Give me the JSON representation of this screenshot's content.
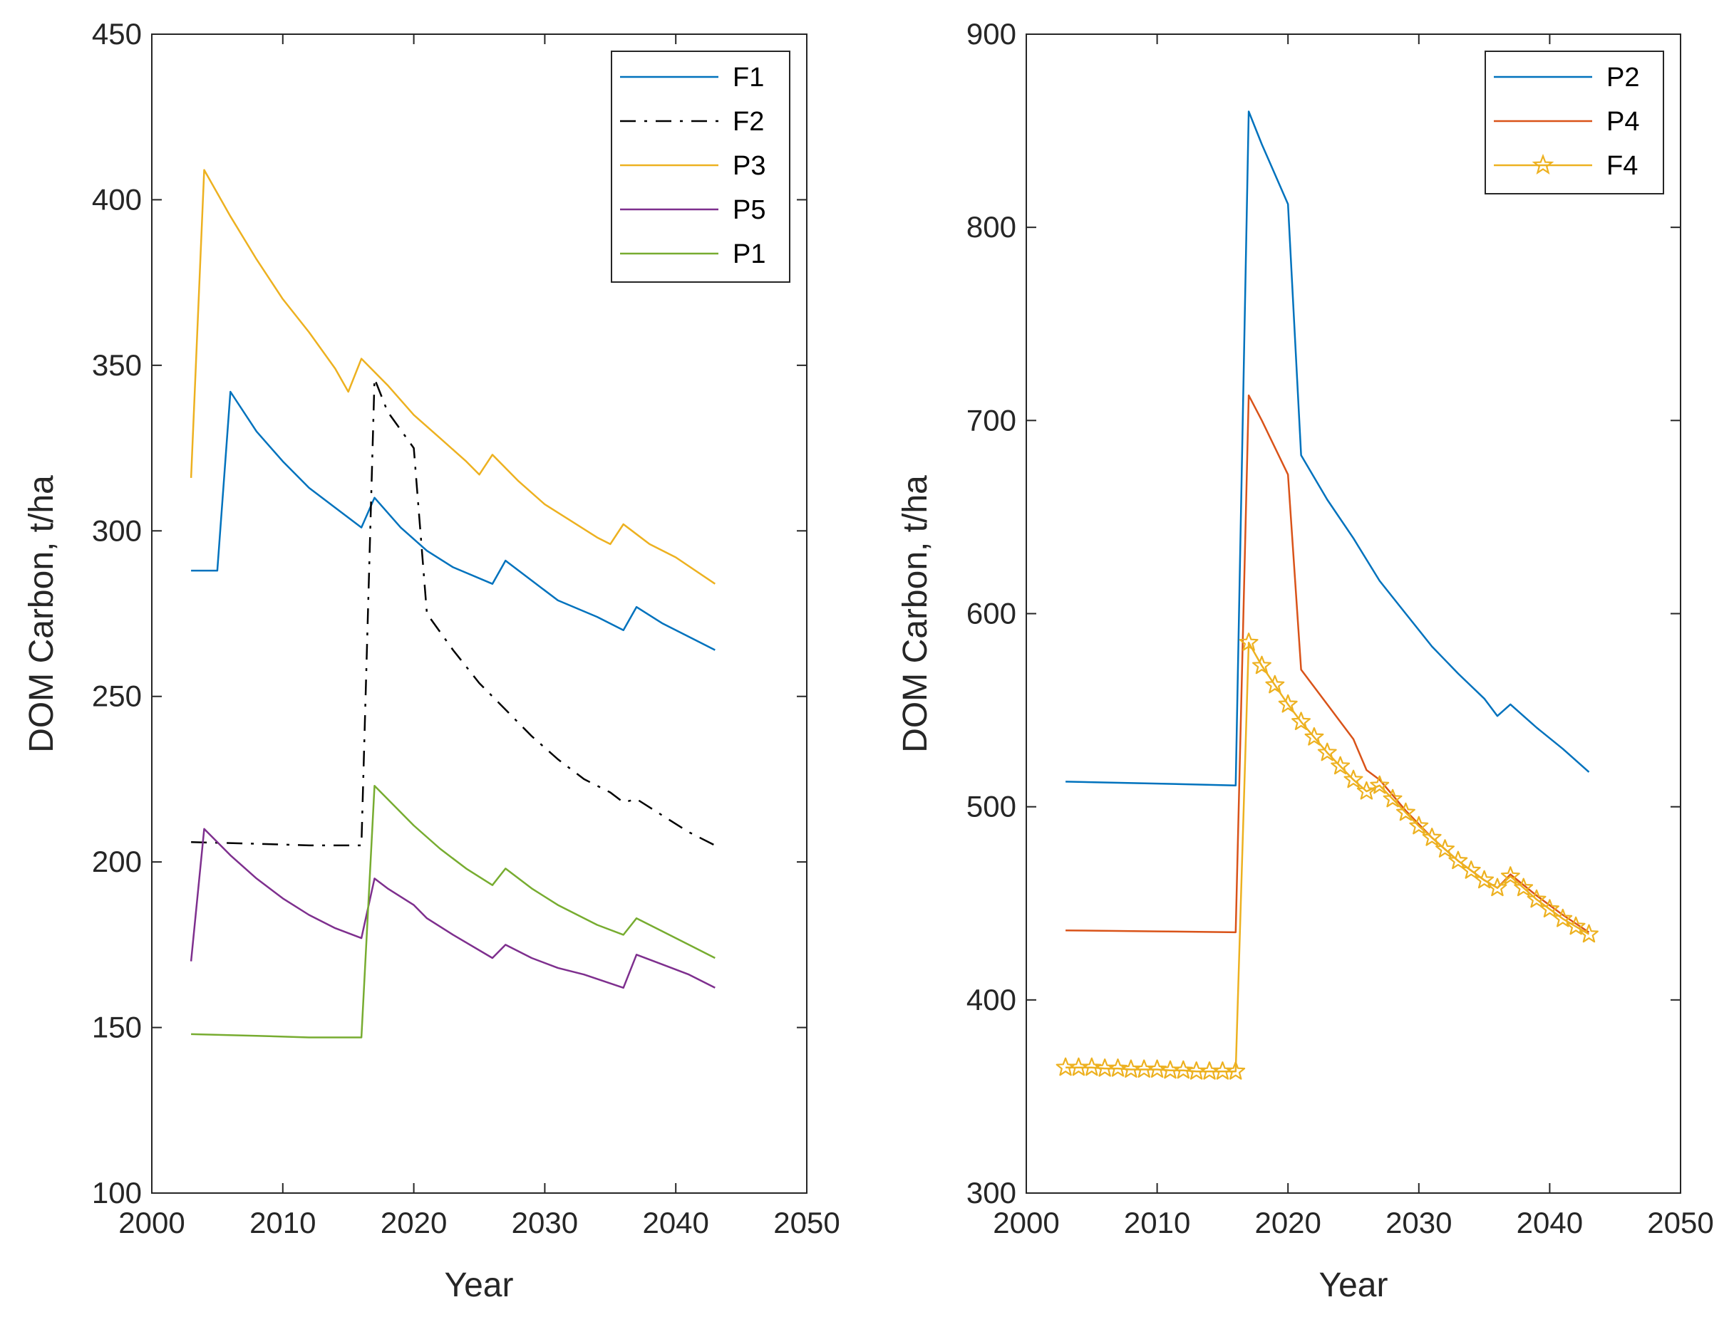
{
  "chart_data": [
    {
      "type": "line",
      "title": "",
      "xlabel": "Year",
      "ylabel": "DOM Carbon, t/ha",
      "xlim": [
        2000,
        2050
      ],
      "ylim": [
        100,
        450
      ],
      "xticks": [
        2000,
        2010,
        2020,
        2030,
        2040,
        2050
      ],
      "yticks": [
        100,
        150,
        200,
        250,
        300,
        350,
        400,
        450
      ],
      "legend_position": "top-right",
      "series": [
        {
          "name": "F1",
          "color": "#0072BD",
          "style": "solid",
          "marker": "none",
          "points": [
            [
              2003,
              288
            ],
            [
              2005,
              288
            ],
            [
              2006,
              342
            ],
            [
              2008,
              330
            ],
            [
              2010,
              321
            ],
            [
              2012,
              313
            ],
            [
              2014,
              307
            ],
            [
              2016,
              301
            ],
            [
              2017,
              310
            ],
            [
              2019,
              301
            ],
            [
              2021,
              294
            ],
            [
              2023,
              289
            ],
            [
              2026,
              284
            ],
            [
              2027,
              291
            ],
            [
              2029,
              285
            ],
            [
              2031,
              279
            ],
            [
              2034,
              274
            ],
            [
              2036,
              270
            ],
            [
              2037,
              277
            ],
            [
              2039,
              272
            ],
            [
              2041,
              268
            ],
            [
              2043,
              264
            ]
          ]
        },
        {
          "name": "F2",
          "color": "#000000",
          "style": "dashdot",
          "marker": "none",
          "points": [
            [
              2003,
              206
            ],
            [
              2008,
              205.5
            ],
            [
              2012,
              205
            ],
            [
              2016,
              205
            ],
            [
              2017,
              346
            ],
            [
              2018,
              336
            ],
            [
              2020,
              325
            ],
            [
              2021,
              275
            ],
            [
              2023,
              264
            ],
            [
              2025,
              254
            ],
            [
              2027,
              246
            ],
            [
              2029,
              238
            ],
            [
              2031,
              231
            ],
            [
              2033,
              225
            ],
            [
              2035,
              221
            ],
            [
              2036,
              218
            ],
            [
              2037,
              219
            ],
            [
              2039,
              214
            ],
            [
              2041,
              209
            ],
            [
              2043,
              205
            ]
          ]
        },
        {
          "name": "P3",
          "color": "#EDB120",
          "style": "solid",
          "marker": "none",
          "points": [
            [
              2003,
              316
            ],
            [
              2004,
              409
            ],
            [
              2006,
              395
            ],
            [
              2008,
              382
            ],
            [
              2010,
              370
            ],
            [
              2012,
              360
            ],
            [
              2014,
              349
            ],
            [
              2015,
              342
            ],
            [
              2016,
              352
            ],
            [
              2018,
              344
            ],
            [
              2020,
              335
            ],
            [
              2022,
              328
            ],
            [
              2024,
              321
            ],
            [
              2025,
              317
            ],
            [
              2026,
              323
            ],
            [
              2028,
              315
            ],
            [
              2030,
              308
            ],
            [
              2032,
              303
            ],
            [
              2034,
              298
            ],
            [
              2035,
              296
            ],
            [
              2036,
              302
            ],
            [
              2038,
              296
            ],
            [
              2040,
              292
            ],
            [
              2043,
              284
            ]
          ]
        },
        {
          "name": "P5",
          "color": "#7E2F8E",
          "style": "solid",
          "marker": "none",
          "points": [
            [
              2003,
              170
            ],
            [
              2004,
              210
            ],
            [
              2006,
              202
            ],
            [
              2008,
              195
            ],
            [
              2010,
              189
            ],
            [
              2012,
              184
            ],
            [
              2014,
              180
            ],
            [
              2016,
              177
            ],
            [
              2017,
              195
            ],
            [
              2018,
              192
            ],
            [
              2020,
              187
            ],
            [
              2021,
              183
            ],
            [
              2023,
              178
            ],
            [
              2026,
              171
            ],
            [
              2027,
              175
            ],
            [
              2029,
              171
            ],
            [
              2031,
              168
            ],
            [
              2033,
              166
            ],
            [
              2036,
              162
            ],
            [
              2037,
              172
            ],
            [
              2039,
              169
            ],
            [
              2041,
              166
            ],
            [
              2043,
              162
            ]
          ]
        },
        {
          "name": "P1",
          "color": "#77AC30",
          "style": "solid",
          "marker": "none",
          "points": [
            [
              2003,
              148
            ],
            [
              2008,
              147.5
            ],
            [
              2012,
              147
            ],
            [
              2016,
              147
            ],
            [
              2017,
              223
            ],
            [
              2018,
              219
            ],
            [
              2020,
              211
            ],
            [
              2022,
              204
            ],
            [
              2024,
              198
            ],
            [
              2026,
              193
            ],
            [
              2027,
              198
            ],
            [
              2029,
              192
            ],
            [
              2031,
              187
            ],
            [
              2034,
              181
            ],
            [
              2036,
              178
            ],
            [
              2037,
              183
            ],
            [
              2039,
              179
            ],
            [
              2041,
              175
            ],
            [
              2043,
              171
            ]
          ]
        }
      ]
    },
    {
      "type": "line",
      "title": "",
      "xlabel": "Year",
      "ylabel": "DOM Carbon, t/ha",
      "xlim": [
        2000,
        2050
      ],
      "ylim": [
        300,
        900
      ],
      "xticks": [
        2000,
        2010,
        2020,
        2030,
        2040,
        2050
      ],
      "yticks": [
        300,
        400,
        500,
        600,
        700,
        800,
        900
      ],
      "legend_position": "top-right",
      "series": [
        {
          "name": "P2",
          "color": "#0072BD",
          "style": "solid",
          "marker": "none",
          "points": [
            [
              2003,
              513
            ],
            [
              2010,
              512
            ],
            [
              2016,
              511
            ],
            [
              2017,
              860
            ],
            [
              2018,
              843
            ],
            [
              2020,
              812
            ],
            [
              2021,
              682
            ],
            [
              2023,
              659
            ],
            [
              2025,
              639
            ],
            [
              2027,
              617
            ],
            [
              2029,
              600
            ],
            [
              2031,
              583
            ],
            [
              2033,
              569
            ],
            [
              2035,
              556
            ],
            [
              2036,
              547
            ],
            [
              2037,
              553
            ],
            [
              2039,
              541
            ],
            [
              2041,
              530
            ],
            [
              2043,
              518
            ]
          ]
        },
        {
          "name": "P4",
          "color": "#D95319",
          "style": "solid",
          "marker": "none",
          "points": [
            [
              2003,
              436
            ],
            [
              2010,
              435.5
            ],
            [
              2016,
              435
            ],
            [
              2017,
              713
            ],
            [
              2018,
              700
            ],
            [
              2020,
              672
            ],
            [
              2021,
              571
            ],
            [
              2023,
              553
            ],
            [
              2025,
              535
            ],
            [
              2026,
              519
            ],
            [
              2027,
              514
            ],
            [
              2029,
              498
            ],
            [
              2031,
              484
            ],
            [
              2033,
              472
            ],
            [
              2035,
              462
            ],
            [
              2036,
              458
            ],
            [
              2037,
              465
            ],
            [
              2039,
              454
            ],
            [
              2041,
              444
            ],
            [
              2043,
              435
            ]
          ]
        },
        {
          "name": "F4",
          "color": "#EDB120",
          "style": "solid",
          "marker": "star",
          "points": [
            [
              2003,
              365
            ],
            [
              2004,
              365
            ],
            [
              2005,
              365
            ],
            [
              2006,
              364.5
            ],
            [
              2007,
              364.5
            ],
            [
              2008,
              364
            ],
            [
              2009,
              364
            ],
            [
              2010,
              364
            ],
            [
              2011,
              363.5
            ],
            [
              2012,
              363.5
            ],
            [
              2013,
              363
            ],
            [
              2014,
              363
            ],
            [
              2015,
              363
            ],
            [
              2016,
              363
            ],
            [
              2017,
              585
            ],
            [
              2018,
              573
            ],
            [
              2019,
              563
            ],
            [
              2020,
              553
            ],
            [
              2021,
              544
            ],
            [
              2022,
              536
            ],
            [
              2023,
              528
            ],
            [
              2024,
              521
            ],
            [
              2025,
              514
            ],
            [
              2026,
              508
            ],
            [
              2027,
              511
            ],
            [
              2028,
              504
            ],
            [
              2029,
              497
            ],
            [
              2030,
              490
            ],
            [
              2031,
              484
            ],
            [
              2032,
              478
            ],
            [
              2033,
              472
            ],
            [
              2034,
              467
            ],
            [
              2035,
              462
            ],
            [
              2036,
              458
            ],
            [
              2037,
              464
            ],
            [
              2038,
              458
            ],
            [
              2039,
              452
            ],
            [
              2040,
              447
            ],
            [
              2041,
              442
            ],
            [
              2042,
              438
            ],
            [
              2043,
              434
            ]
          ]
        }
      ]
    }
  ]
}
